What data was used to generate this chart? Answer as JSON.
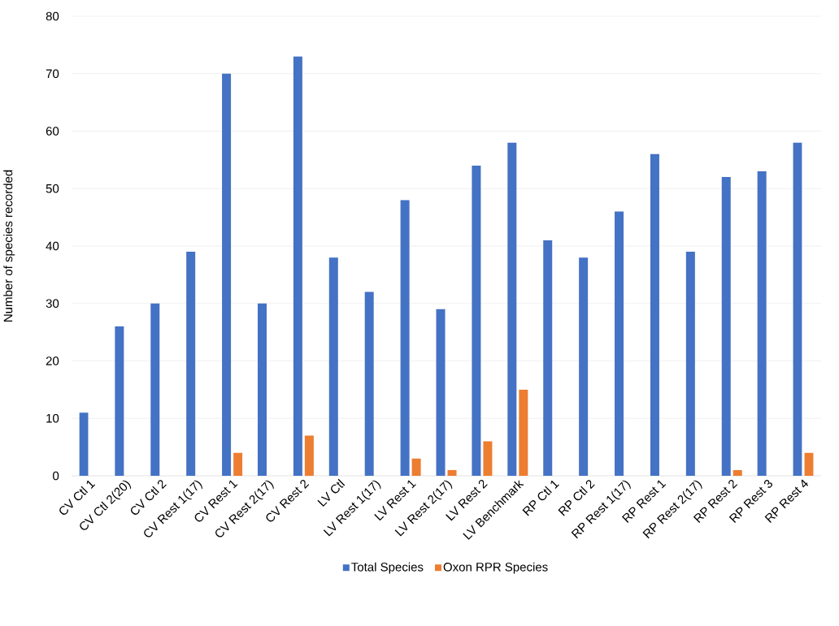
{
  "chart_data": {
    "type": "bar",
    "ylabel": "Number of species recorded",
    "categories": [
      "CV Ctl 1",
      "CV Ctl 2(20)",
      "CV Ctl 2",
      "CV Rest 1(17)",
      "CV Rest 1",
      "CV Rest 2(17)",
      "CV Rest 2",
      "LV Ctl",
      "LV Rest 1(17)",
      "LV Rest 1",
      "LV Rest 2(17)",
      "LV Rest 2",
      "LV Benchmark",
      "RP Ctl 1",
      "RP Ctl 2",
      "RP Rest 1(17)",
      "RP Rest 1",
      "RP Rest 2(17)",
      "RP Rest 2",
      "RP Rest 3",
      "RP Rest 4"
    ],
    "series": [
      {
        "name": "Total Species",
        "color": "#4472c4",
        "values": [
          11,
          26,
          30,
          39,
          70,
          30,
          73,
          38,
          32,
          48,
          29,
          54,
          58,
          41,
          38,
          46,
          56,
          39,
          52,
          53,
          58
        ]
      },
      {
        "name": "Oxon RPR Species",
        "color": "#ed7d31",
        "values": [
          null,
          null,
          null,
          null,
          4,
          null,
          7,
          null,
          null,
          3,
          1,
          6,
          15,
          null,
          null,
          null,
          null,
          null,
          1,
          null,
          4
        ]
      }
    ],
    "ylim": [
      0,
      80
    ],
    "yticks": [
      0,
      10,
      20,
      30,
      40,
      50,
      60,
      70,
      80
    ],
    "grid": "y",
    "legend": "bottom"
  }
}
